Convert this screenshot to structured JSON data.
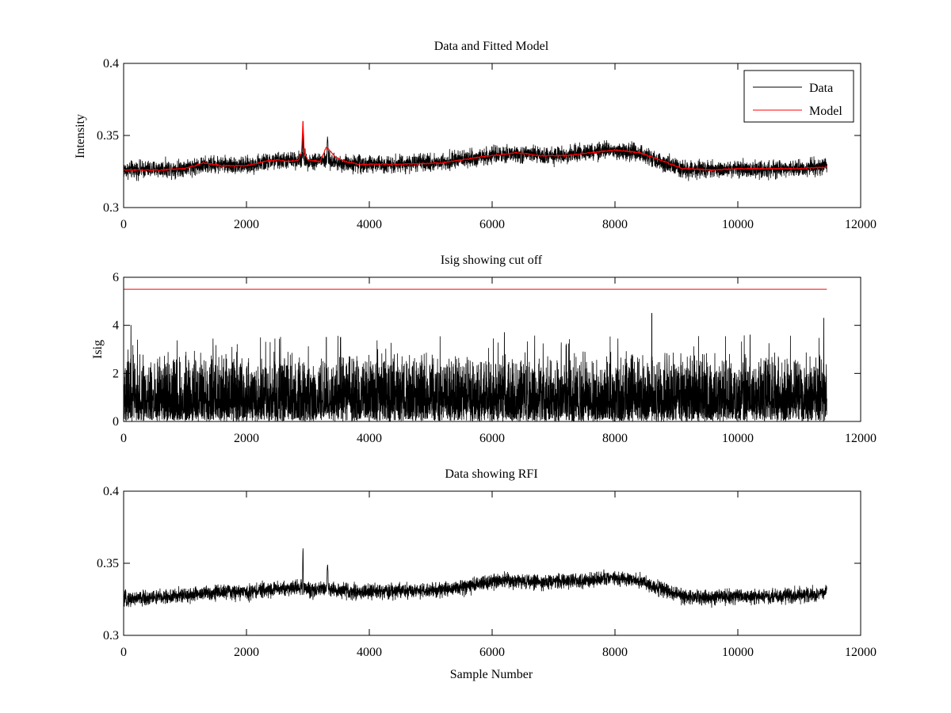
{
  "chart_data": [
    {
      "type": "line",
      "title": "Data and Fitted Model",
      "xlabel": "",
      "ylabel": "Intensity",
      "xlim": [
        0,
        12000
      ],
      "ylim": [
        0.3,
        0.4
      ],
      "xticks": [
        0,
        2000,
        4000,
        6000,
        8000,
        10000,
        12000
      ],
      "yticks": [
        0.3,
        0.35,
        0.4
      ],
      "xtick_labels": [
        "0",
        "2000",
        "4000",
        "6000",
        "8000",
        "10000",
        "12000"
      ],
      "ytick_labels": [
        "0.3",
        "0.35",
        "0.4"
      ],
      "grid": false,
      "legend": {
        "placement": "top-right",
        "entries": [
          "Data",
          "Model"
        ]
      },
      "series": [
        {
          "name": "Data",
          "color": "#000000",
          "kind": "noisy",
          "n_points": 11450,
          "noise_amplitude": 0.0045,
          "baseline": [
            [
              0,
              0.326
            ],
            [
              800,
              0.327
            ],
            [
              1500,
              0.33
            ],
            [
              2000,
              0.329
            ],
            [
              2400,
              0.332
            ],
            [
              2800,
              0.333
            ],
            [
              2900,
              0.334
            ],
            [
              3050,
              0.332
            ],
            [
              3200,
              0.333
            ],
            [
              3500,
              0.331
            ],
            [
              4000,
              0.33
            ],
            [
              5000,
              0.331
            ],
            [
              5600,
              0.334
            ],
            [
              6000,
              0.336
            ],
            [
              6400,
              0.337
            ],
            [
              7000,
              0.336
            ],
            [
              7500,
              0.338
            ],
            [
              8000,
              0.34
            ],
            [
              8400,
              0.338
            ],
            [
              8800,
              0.331
            ],
            [
              9100,
              0.327
            ],
            [
              9500,
              0.326
            ],
            [
              10000,
              0.327
            ],
            [
              10500,
              0.326
            ],
            [
              11000,
              0.327
            ],
            [
              11450,
              0.329
            ]
          ],
          "spikes": [
            [
              2920,
              0.36
            ],
            [
              3320,
              0.349
            ],
            [
              3840,
              0.336
            ]
          ]
        },
        {
          "name": "Model",
          "color": "#ff0000",
          "kind": "smooth",
          "points": [
            [
              0,
              0.326
            ],
            [
              600,
              0.326
            ],
            [
              1000,
              0.327
            ],
            [
              1300,
              0.331
            ],
            [
              1600,
              0.329
            ],
            [
              2000,
              0.329
            ],
            [
              2300,
              0.332
            ],
            [
              2500,
              0.333
            ],
            [
              2700,
              0.332
            ],
            [
              2850,
              0.333
            ],
            [
              2900,
              0.339
            ],
            [
              2920,
              0.36
            ],
            [
              2940,
              0.338
            ],
            [
              3000,
              0.333
            ],
            [
              3200,
              0.332
            ],
            [
              3300,
              0.342
            ],
            [
              3450,
              0.335
            ],
            [
              3600,
              0.332
            ],
            [
              3840,
              0.33
            ],
            [
              4500,
              0.33
            ],
            [
              5200,
              0.331
            ],
            [
              5800,
              0.335
            ],
            [
              6200,
              0.337
            ],
            [
              6400,
              0.338
            ],
            [
              6800,
              0.336
            ],
            [
              7200,
              0.336
            ],
            [
              7600,
              0.338
            ],
            [
              8000,
              0.34
            ],
            [
              8400,
              0.338
            ],
            [
              8800,
              0.332
            ],
            [
              9100,
              0.327
            ],
            [
              9600,
              0.326
            ],
            [
              10000,
              0.327
            ],
            [
              10500,
              0.327
            ],
            [
              11000,
              0.327
            ],
            [
              11450,
              0.328
            ]
          ]
        }
      ]
    },
    {
      "type": "line",
      "title": "Isig showing cut off",
      "xlabel": "",
      "ylabel": "Isig",
      "xlim": [
        0,
        12000
      ],
      "ylim": [
        0,
        6
      ],
      "xticks": [
        0,
        2000,
        4000,
        6000,
        8000,
        10000,
        12000
      ],
      "yticks": [
        0,
        2,
        4,
        6
      ],
      "xtick_labels": [
        "0",
        "2000",
        "4000",
        "6000",
        "8000",
        "10000",
        "12000"
      ],
      "ytick_labels": [
        "0",
        "2",
        "4",
        "6"
      ],
      "grid": false,
      "series": [
        {
          "color": "#000000",
          "kind": "abs-noise",
          "n_points": 11450,
          "typical_max": 2.3,
          "peaks": [
            [
              8600,
              4.5
            ],
            [
              11400,
              4.3
            ],
            [
              120,
              4.0
            ],
            [
              3300,
              3.5
            ],
            [
              6200,
              3.7
            ],
            [
              10200,
              3.6
            ]
          ]
        },
        {
          "color": "#ff0000",
          "kind": "constant",
          "points": [
            [
              0,
              5.5
            ],
            [
              11450,
              5.5
            ]
          ]
        }
      ]
    },
    {
      "type": "line",
      "title": "Data showing RFI",
      "xlabel": "Sample Number",
      "ylabel": "",
      "xlim": [
        0,
        12000
      ],
      "ylim": [
        0.3,
        0.4
      ],
      "xticks": [
        0,
        2000,
        4000,
        6000,
        8000,
        10000,
        12000
      ],
      "yticks": [
        0.3,
        0.35,
        0.4
      ],
      "xtick_labels": [
        "0",
        "2000",
        "4000",
        "6000",
        "8000",
        "10000",
        "12000"
      ],
      "ytick_labels": [
        "0.3",
        "0.35",
        "0.4"
      ],
      "grid": false,
      "series": [
        {
          "color": "#000000",
          "kind": "noisy",
          "n_points": 11450,
          "noise_amplitude": 0.004,
          "baseline": [
            [
              0,
              0.325
            ],
            [
              800,
              0.327
            ],
            [
              1500,
              0.33
            ],
            [
              2000,
              0.33
            ],
            [
              2400,
              0.332
            ],
            [
              2800,
              0.333
            ],
            [
              2900,
              0.334
            ],
            [
              3050,
              0.331
            ],
            [
              3200,
              0.333
            ],
            [
              3500,
              0.331
            ],
            [
              4000,
              0.33
            ],
            [
              5000,
              0.331
            ],
            [
              5600,
              0.334
            ],
            [
              6000,
              0.337
            ],
            [
              6400,
              0.338
            ],
            [
              7000,
              0.337
            ],
            [
              7500,
              0.338
            ],
            [
              8000,
              0.34
            ],
            [
              8400,
              0.338
            ],
            [
              8800,
              0.331
            ],
            [
              9100,
              0.327
            ],
            [
              9500,
              0.326
            ],
            [
              10000,
              0.327
            ],
            [
              10500,
              0.327
            ],
            [
              11000,
              0.328
            ],
            [
              11450,
              0.33
            ]
          ],
          "spikes": [
            [
              2920,
              0.36
            ],
            [
              3320,
              0.349
            ]
          ]
        }
      ]
    }
  ]
}
